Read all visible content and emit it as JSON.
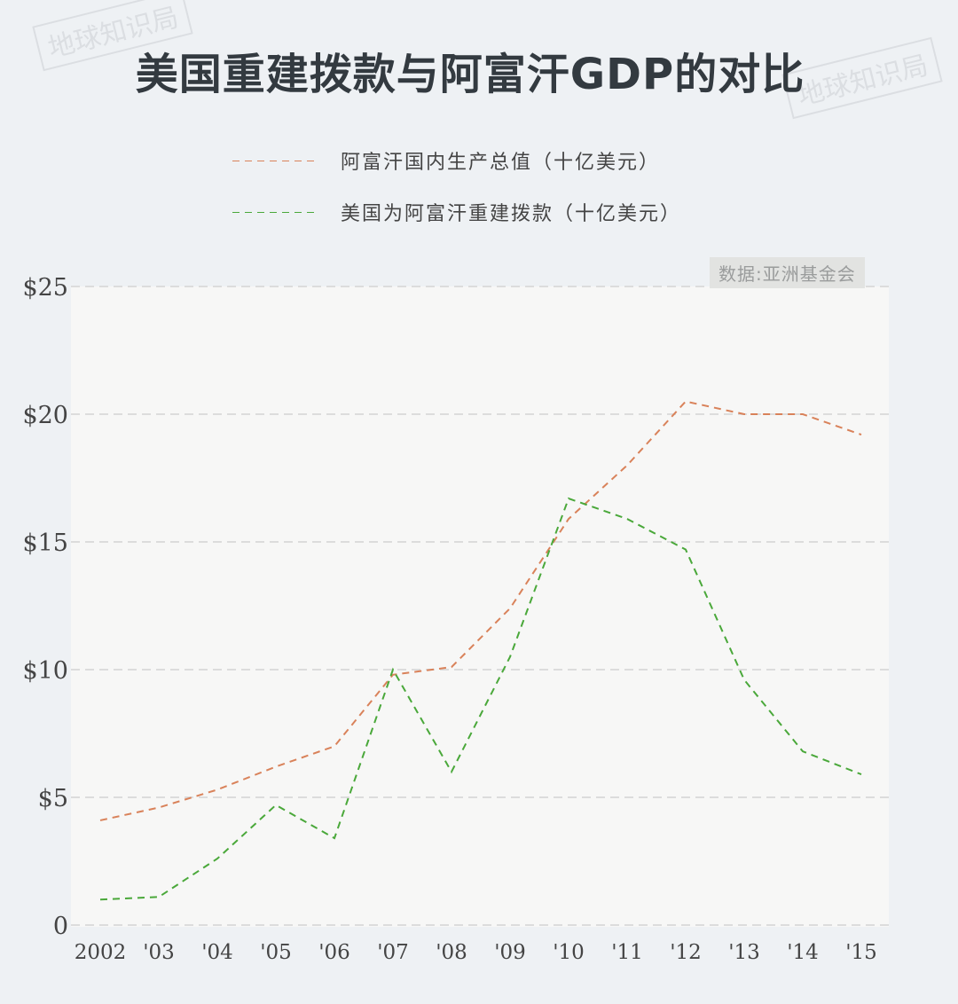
{
  "title": "美国重建拨款与阿富汗GDP的对比",
  "watermark": "地球知识局",
  "source": "数据:亚洲基金会",
  "chart_data": {
    "type": "line",
    "title": "美国重建拨款与阿富汗GDP的对比",
    "x": [
      "2002",
      "'03",
      "'04",
      "'05",
      "'06",
      "'07",
      "'08",
      "'09",
      "'10",
      "'11",
      "'12",
      "'13",
      "'14",
      "'15"
    ],
    "series": [
      {
        "name": "阿富汗国内生产总值（十亿美元）",
        "color": "#d9825a",
        "values": [
          4.1,
          4.6,
          5.3,
          6.2,
          7.0,
          9.8,
          10.1,
          12.4,
          15.9,
          18.0,
          20.5,
          20.0,
          20.0,
          19.2
        ]
      },
      {
        "name": "美国为阿富汗重建拨款（十亿美元）",
        "color": "#4aa83a",
        "values": [
          1.0,
          1.1,
          2.6,
          4.7,
          3.4,
          10.0,
          6.0,
          10.5,
          16.7,
          15.9,
          14.7,
          9.6,
          6.8,
          5.9
        ]
      }
    ],
    "yticks": [
      "0",
      "$5",
      "$10",
      "$15",
      "$20",
      "$25"
    ],
    "ytick_values": [
      0,
      5,
      10,
      15,
      20,
      25
    ],
    "ylim": [
      0,
      25
    ],
    "line_style": "dashed",
    "grid": true,
    "legend": "top-center"
  }
}
